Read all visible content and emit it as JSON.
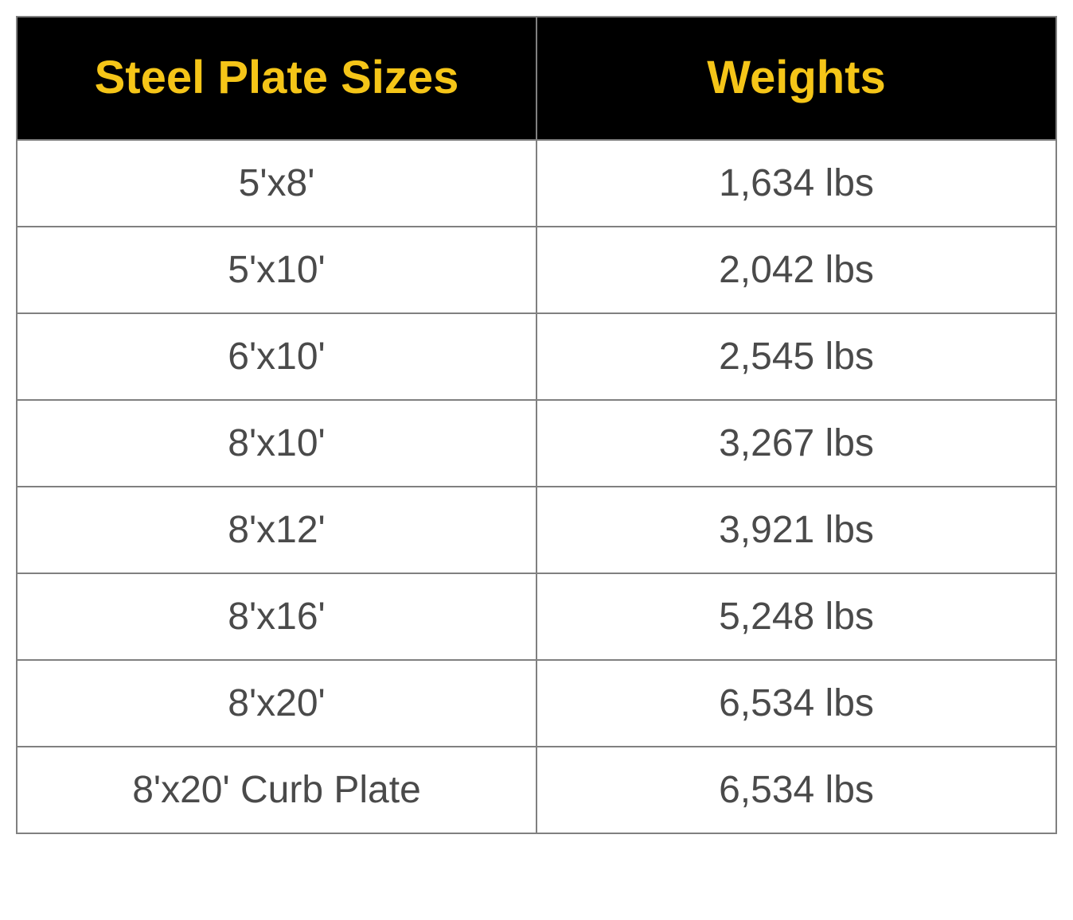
{
  "table": {
    "type": "table",
    "columns": [
      {
        "label": "Steel Plate Sizes",
        "width": "50%",
        "align": "center"
      },
      {
        "label": "Weights",
        "width": "50%",
        "align": "center"
      }
    ],
    "rows": [
      {
        "size": "5'x8'",
        "weight": "1,634 lbs"
      },
      {
        "size": "5'x10'",
        "weight": "2,042 lbs"
      },
      {
        "size": "6'x10'",
        "weight": "2,545 lbs"
      },
      {
        "size": "8'x10'",
        "weight": "3,267 lbs"
      },
      {
        "size": "8'x12'",
        "weight": "3,921 lbs"
      },
      {
        "size": "8'x16'",
        "weight": "5,248 lbs"
      },
      {
        "size": "8'x20'",
        "weight": "6,534 lbs"
      },
      {
        "size": "8'x20' Curb Plate",
        "weight": "6,534 lbs"
      }
    ],
    "header_bg_color": "#000000",
    "header_text_color": "#f5c518",
    "header_fontsize": 58,
    "header_fontweight": 700,
    "cell_text_color": "#4a4a4a",
    "cell_fontsize": 48,
    "cell_fontweight": 400,
    "border_color": "#808080",
    "border_width": 2,
    "background_color": "#ffffff"
  }
}
